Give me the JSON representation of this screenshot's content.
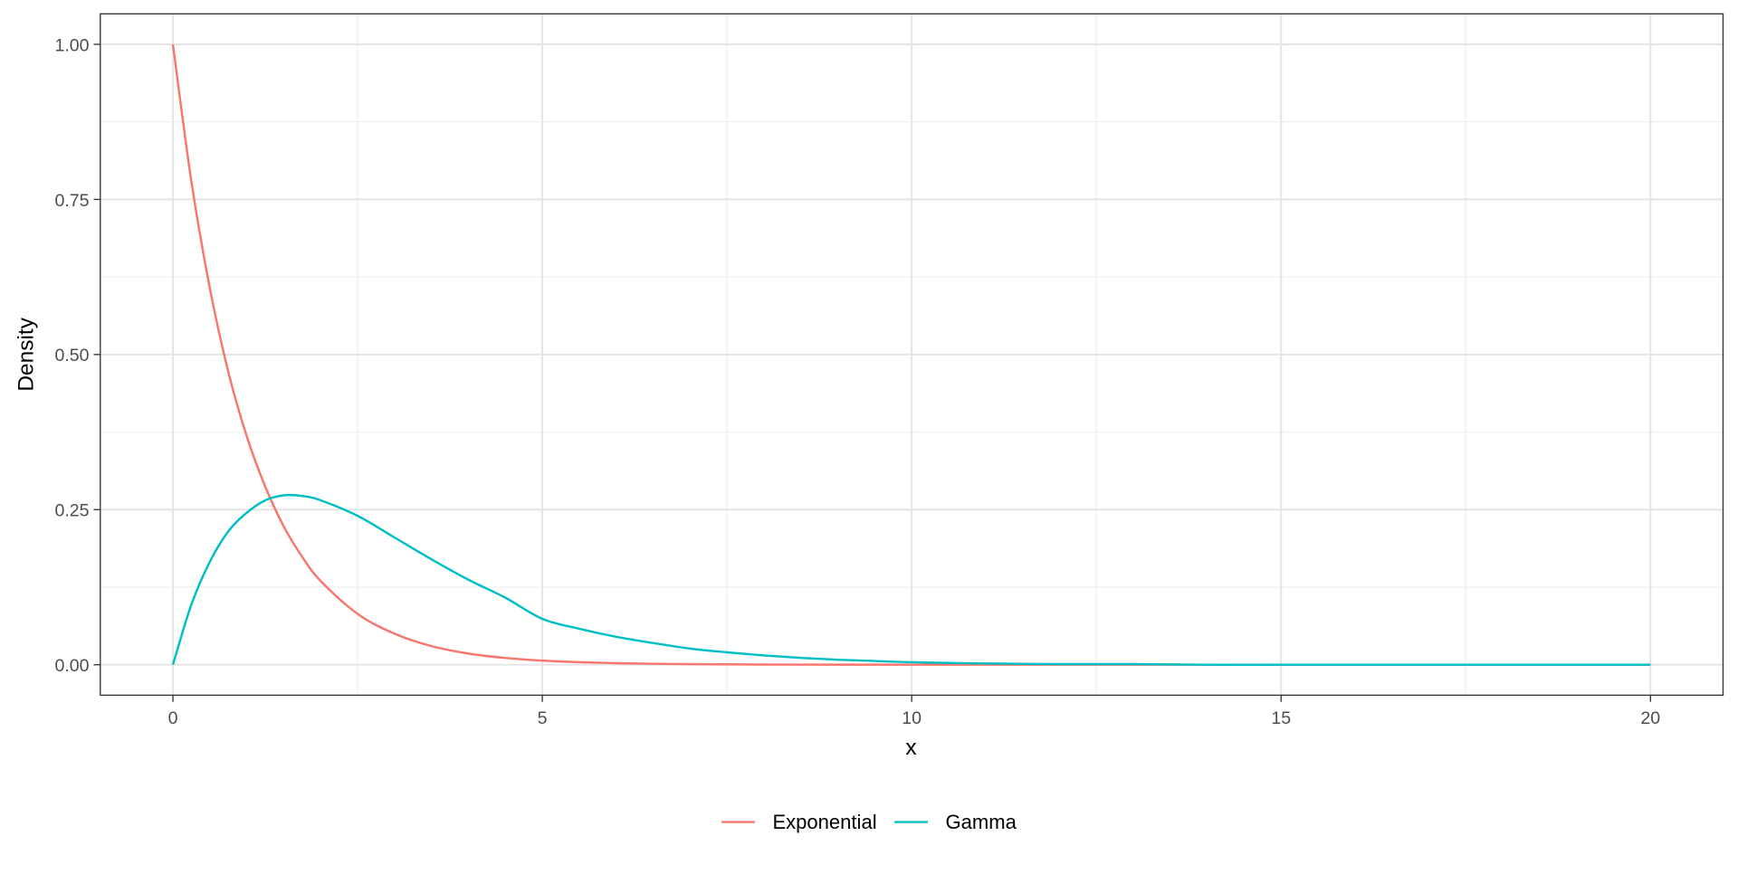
{
  "chart_data": {
    "type": "line",
    "title": "",
    "xlabel": "x",
    "ylabel": "Density",
    "xlim": [
      0,
      20
    ],
    "ylim": [
      0,
      1
    ],
    "x_ticks": [
      0,
      5,
      10,
      15,
      20
    ],
    "x_tick_labels": [
      "0",
      "5",
      "10",
      "15",
      "20"
    ],
    "y_ticks": [
      0,
      0.25,
      0.5,
      0.75,
      1
    ],
    "y_tick_labels": [
      "0.00",
      "0.25",
      "0.50",
      "0.75",
      "1.00"
    ],
    "grid": true,
    "legend_position": "bottom",
    "x": [
      0,
      0.25,
      0.5,
      0.75,
      1,
      1.25,
      1.5,
      1.75,
      2,
      2.5,
      3,
      3.5,
      4,
      4.5,
      5,
      5.5,
      6,
      6.5,
      7,
      7.5,
      8,
      8.5,
      9,
      9.5,
      10,
      11,
      12,
      13,
      14,
      15,
      16,
      17,
      18,
      19,
      20
    ],
    "series": [
      {
        "name": "Exponential",
        "color": "#F8766D",
        "values": [
          1.0,
          0.779,
          0.607,
          0.472,
          0.368,
          0.287,
          0.223,
          0.174,
          0.135,
          0.082,
          0.05,
          0.03,
          0.018,
          0.011,
          0.0067,
          0.0041,
          0.0025,
          0.0015,
          0.0009,
          0.0006,
          0.0003,
          0.0002,
          0.0001,
          0.0001,
          0.0,
          0.0,
          0.0,
          0.0,
          0.0,
          0.0,
          0.0,
          0.0,
          0.0,
          0.0,
          0.0
        ]
      },
      {
        "name": "Gamma",
        "color": "#00BFC4",
        "values": [
          0.0,
          0.097,
          0.166,
          0.215,
          0.245,
          0.265,
          0.273,
          0.272,
          0.265,
          0.24,
          0.205,
          0.17,
          0.137,
          0.108,
          0.074,
          0.058,
          0.045,
          0.035,
          0.026,
          0.02,
          0.015,
          0.011,
          0.008,
          0.006,
          0.004,
          0.002,
          0.001,
          0.001,
          0.0,
          0.0,
          0.0,
          0.0,
          0.0,
          0.0,
          0.0
        ]
      }
    ]
  }
}
